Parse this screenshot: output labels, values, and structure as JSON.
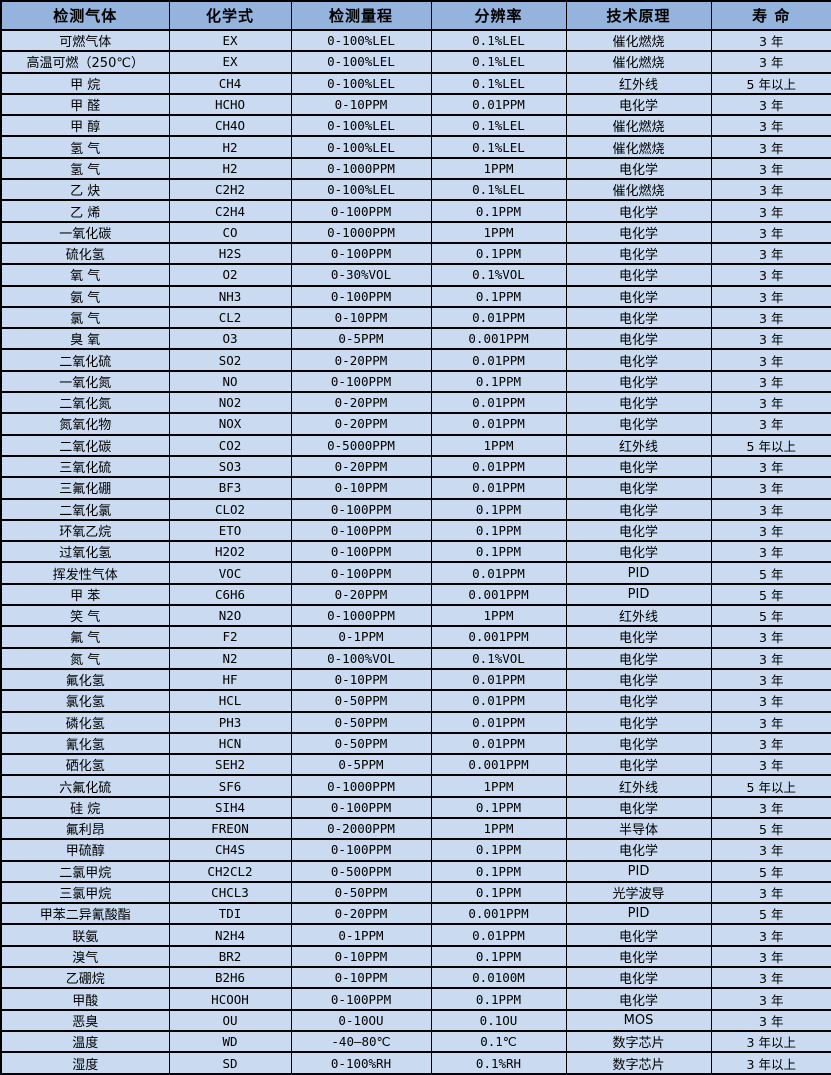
{
  "table": {
    "columns": [
      "检测气体",
      "化学式",
      "检测量程",
      "分辨率",
      "技术原理",
      "寿 命"
    ],
    "rows": [
      [
        "可燃气体",
        "EX",
        "0-100%LEL",
        "0.1%LEL",
        "催化燃烧",
        "3 年"
      ],
      [
        "高温可燃（250℃）",
        "EX",
        "0-100%LEL",
        "0.1%LEL",
        "催化燃烧",
        "3 年"
      ],
      [
        "甲 烷",
        "CH4",
        "0-100%LEL",
        "0.1%LEL",
        "红外线",
        "5 年以上"
      ],
      [
        "甲 醛",
        "HCHO",
        "0-10PPM",
        "0.01PPM",
        "电化学",
        "3 年"
      ],
      [
        "甲 醇",
        "CH4O",
        "0-100%LEL",
        "0.1%LEL",
        "催化燃烧",
        "3 年"
      ],
      [
        "氢 气",
        "H2",
        "0-100%LEL",
        "0.1%LEL",
        "催化燃烧",
        "3 年"
      ],
      [
        "氢 气",
        "H2",
        "0-1000PPM",
        "1PPM",
        "电化学",
        "3 年"
      ],
      [
        "乙 炔",
        "C2H2",
        "0-100%LEL",
        "0.1%LEL",
        "催化燃烧",
        "3 年"
      ],
      [
        "乙 烯",
        "C2H4",
        "0-100PPM",
        "0.1PPM",
        "电化学",
        "3 年"
      ],
      [
        "一氧化碳",
        "CO",
        "0-1000PPM",
        "1PPM",
        "电化学",
        "3 年"
      ],
      [
        "硫化氢",
        "H2S",
        "0-100PPM",
        "0.1PPM",
        "电化学",
        "3 年"
      ],
      [
        "氧 气",
        "O2",
        "0-30%VOL",
        "0.1%VOL",
        "电化学",
        "3 年"
      ],
      [
        "氨 气",
        "NH3",
        "0-100PPM",
        "0.1PPM",
        "电化学",
        "3 年"
      ],
      [
        "氯 气",
        "CL2",
        "0-10PPM",
        "0.01PPM",
        "电化学",
        "3 年"
      ],
      [
        "臭 氧",
        "O3",
        "0-5PPM",
        "0.001PPM",
        "电化学",
        "3 年"
      ],
      [
        "二氧化硫",
        "SO2",
        "0-20PPM",
        "0.01PPM",
        "电化学",
        "3 年"
      ],
      [
        "一氧化氮",
        "NO",
        "0-100PPM",
        "0.1PPM",
        "电化学",
        "3 年"
      ],
      [
        "二氧化氮",
        "NO2",
        "0-20PPM",
        "0.01PPM",
        "电化学",
        "3 年"
      ],
      [
        "氮氧化物",
        "NOX",
        "0-20PPM",
        "0.01PPM",
        "电化学",
        "3 年"
      ],
      [
        "二氧化碳",
        "CO2",
        "0-5000PPM",
        "1PPM",
        "红外线",
        "5 年以上"
      ],
      [
        "三氧化硫",
        "SO3",
        "0-20PPM",
        "0.01PPM",
        "电化学",
        "3 年"
      ],
      [
        "三氟化硼",
        "BF3",
        "0-10PPM",
        "0.01PPM",
        "电化学",
        "3 年"
      ],
      [
        "二氧化氯",
        "CLO2",
        "0-100PPM",
        "0.1PPM",
        "电化学",
        "3 年"
      ],
      [
        "环氧乙烷",
        "ETO",
        "0-100PPM",
        "0.1PPM",
        "电化学",
        "3 年"
      ],
      [
        "过氧化氢",
        "H2O2",
        "0-100PPM",
        "0.1PPM",
        "电化学",
        "3 年"
      ],
      [
        "挥发性气体",
        "VOC",
        "0-100PPM",
        "0.01PPM",
        "PID",
        "5 年"
      ],
      [
        "甲 苯",
        "C6H6",
        "0-20PPM",
        "0.001PPM",
        "PID",
        "5 年"
      ],
      [
        "笑 气",
        "N2O",
        "0-1000PPM",
        "1PPM",
        "红外线",
        "5 年"
      ],
      [
        "氟 气",
        "F2",
        "0-1PPM",
        "0.001PPM",
        "电化学",
        "3 年"
      ],
      [
        "氮 气",
        "N2",
        "0-100%VOL",
        "0.1%VOL",
        "电化学",
        "3 年"
      ],
      [
        "氟化氢",
        "HF",
        "0-10PPM",
        "0.01PPM",
        "电化学",
        "3 年"
      ],
      [
        "氯化氢",
        "HCL",
        "0-50PPM",
        "0.01PPM",
        "电化学",
        "3 年"
      ],
      [
        "磷化氢",
        "PH3",
        "0-50PPM",
        "0.01PPM",
        "电化学",
        "3 年"
      ],
      [
        "氰化氢",
        "HCN",
        "0-50PPM",
        "0.01PPM",
        "电化学",
        "3 年"
      ],
      [
        "硒化氢",
        "SEH2",
        "0-5PPM",
        "0.001PPM",
        "电化学",
        "3 年"
      ],
      [
        "六氟化硫",
        "SF6",
        "0-1000PPM",
        "1PPM",
        "红外线",
        "5 年以上"
      ],
      [
        "硅 烷",
        "SIH4",
        "0-100PPM",
        "0.1PPM",
        "电化学",
        "3 年"
      ],
      [
        "氟利昂",
        "FREON",
        "0-2000PPM",
        "1PPM",
        "半导体",
        "5 年"
      ],
      [
        "甲硫醇",
        "CH4S",
        "0-100PPM",
        "0.1PPM",
        "电化学",
        "3 年"
      ],
      [
        "二氯甲烷",
        "CH2CL2",
        "0-500PPM",
        "0.1PPM",
        "PID",
        "5 年"
      ],
      [
        "三氯甲烷",
        "CHCL3",
        "0-50PPM",
        "0.1PPM",
        "光学波导",
        "3 年"
      ],
      [
        "甲苯二异氰酸酯",
        "TDI",
        "0-20PPM",
        "0.001PPM",
        "PID",
        "5 年"
      ],
      [
        "联氨",
        "N2H4",
        "0-1PPM",
        "0.01PPM",
        "电化学",
        "3 年"
      ],
      [
        "溴气",
        "BR2",
        "0-10PPM",
        "0.1PPM",
        "电化学",
        "3 年"
      ],
      [
        "乙硼烷",
        "B2H6",
        "0-10PPM",
        "0.0100M",
        "电化学",
        "3 年"
      ],
      [
        "甲酸",
        "HCOOH",
        "0-100PPM",
        "0.1PPM",
        "电化学",
        "3 年"
      ],
      [
        "恶臭",
        "OU",
        "0-10OU",
        "0.1OU",
        "MOS",
        "3 年"
      ],
      [
        "温度",
        "WD",
        "-40—80℃",
        "0.1℃",
        "数字芯片",
        "3 年以上"
      ],
      [
        "湿度",
        "SD",
        "0-100%RH",
        "0.1%RH",
        "数字芯片",
        "3 年以上"
      ]
    ],
    "colors": {
      "header_bg": "#94b3dd",
      "row_bg": "#cadbf1",
      "border": "#000000",
      "text": "#000000"
    }
  }
}
